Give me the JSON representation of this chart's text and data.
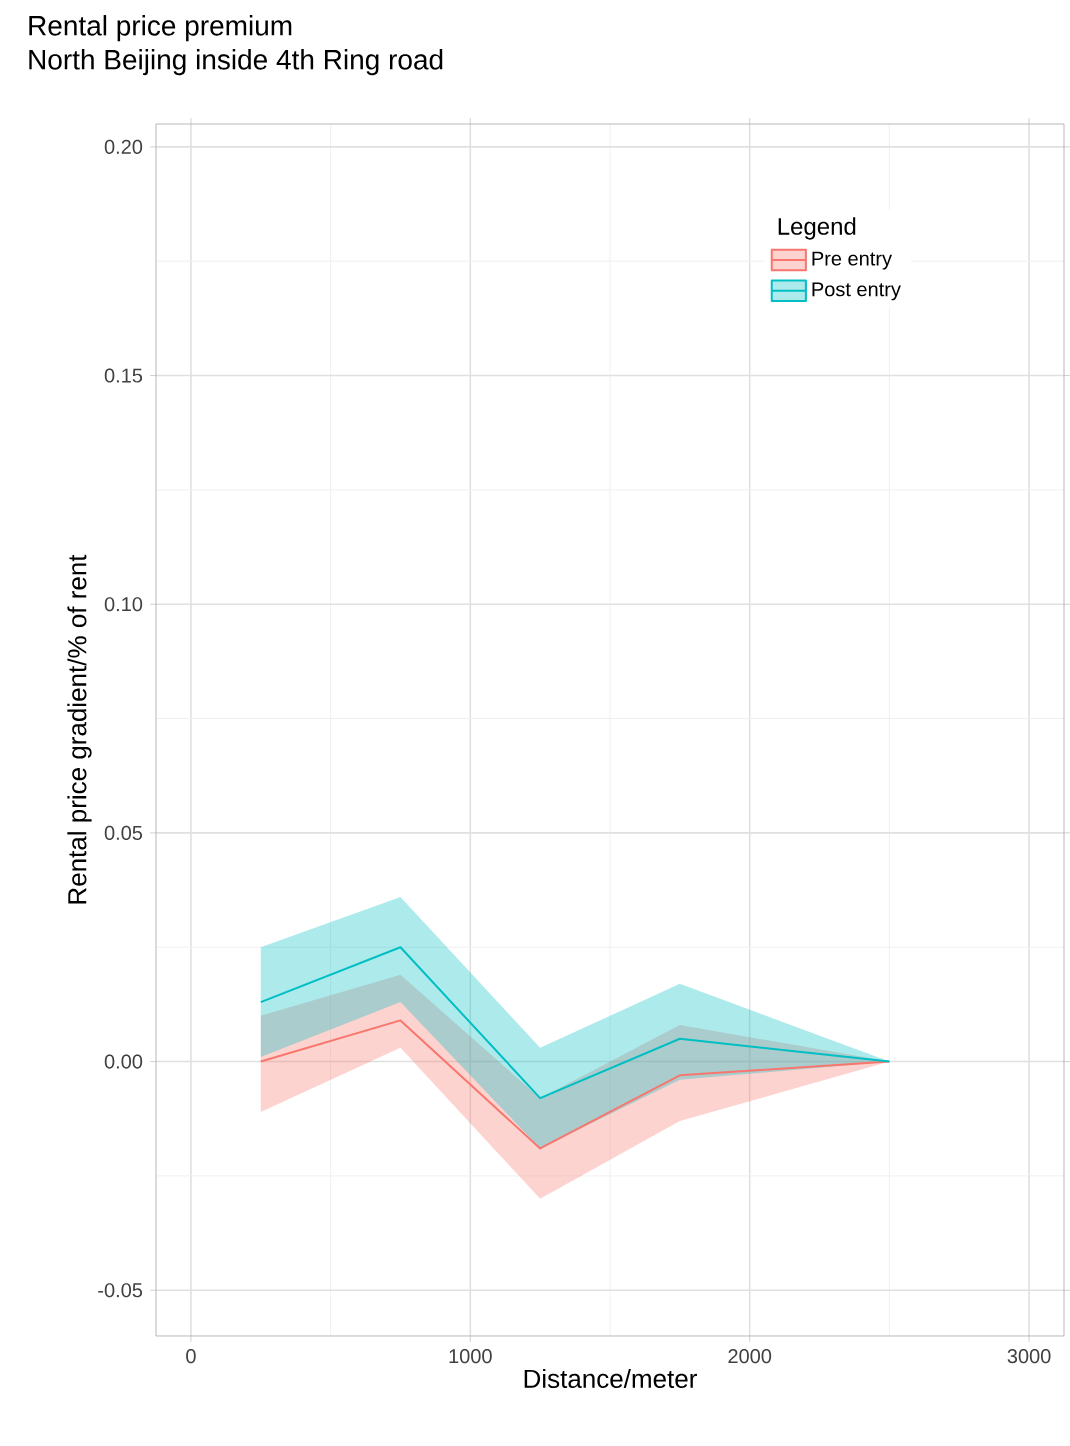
{
  "chart_data": {
    "type": "line",
    "title": "Rental price premium",
    "subtitle": "North Beijing inside 4th Ring road",
    "xlabel": "Distance/meter",
    "ylabel": "Rental price gradient/% of rent",
    "legend_title": "Legend",
    "x": [
      250,
      750,
      1250,
      1750,
      2500
    ],
    "series": [
      {
        "name": "Pre entry",
        "color": "#f8766d",
        "values": [
          0.0,
          0.009,
          -0.019,
          -0.003,
          0.0
        ],
        "lower": [
          -0.011,
          0.003,
          -0.03,
          -0.013,
          0.0
        ],
        "upper": [
          0.01,
          0.019,
          -0.008,
          0.008,
          0.0
        ]
      },
      {
        "name": "Post entry",
        "color": "#00bfc4",
        "values": [
          0.013,
          0.025,
          -0.008,
          0.005,
          0.0
        ],
        "lower": [
          0.001,
          0.013,
          -0.019,
          -0.004,
          0.0
        ],
        "upper": [
          0.025,
          0.036,
          0.003,
          0.017,
          0.0
        ]
      }
    ],
    "xlim": [
      -125,
      3125
    ],
    "ylim": [
      -0.06,
      0.205
    ],
    "xticks": [
      0,
      1000,
      2000,
      3000
    ],
    "yticks": [
      {
        "value": -0.05,
        "label": "-0.05"
      },
      {
        "value": 0,
        "label": "0.00"
      },
      {
        "value": 0.05,
        "label": "0.05"
      },
      {
        "value": 0.1,
        "label": "0.10"
      },
      {
        "value": 0.15,
        "label": "0.15"
      },
      {
        "value": 0.2,
        "label": "0.20"
      }
    ],
    "grid": true,
    "legend": "top right",
    "marker": "none",
    "line_style": "solid"
  }
}
